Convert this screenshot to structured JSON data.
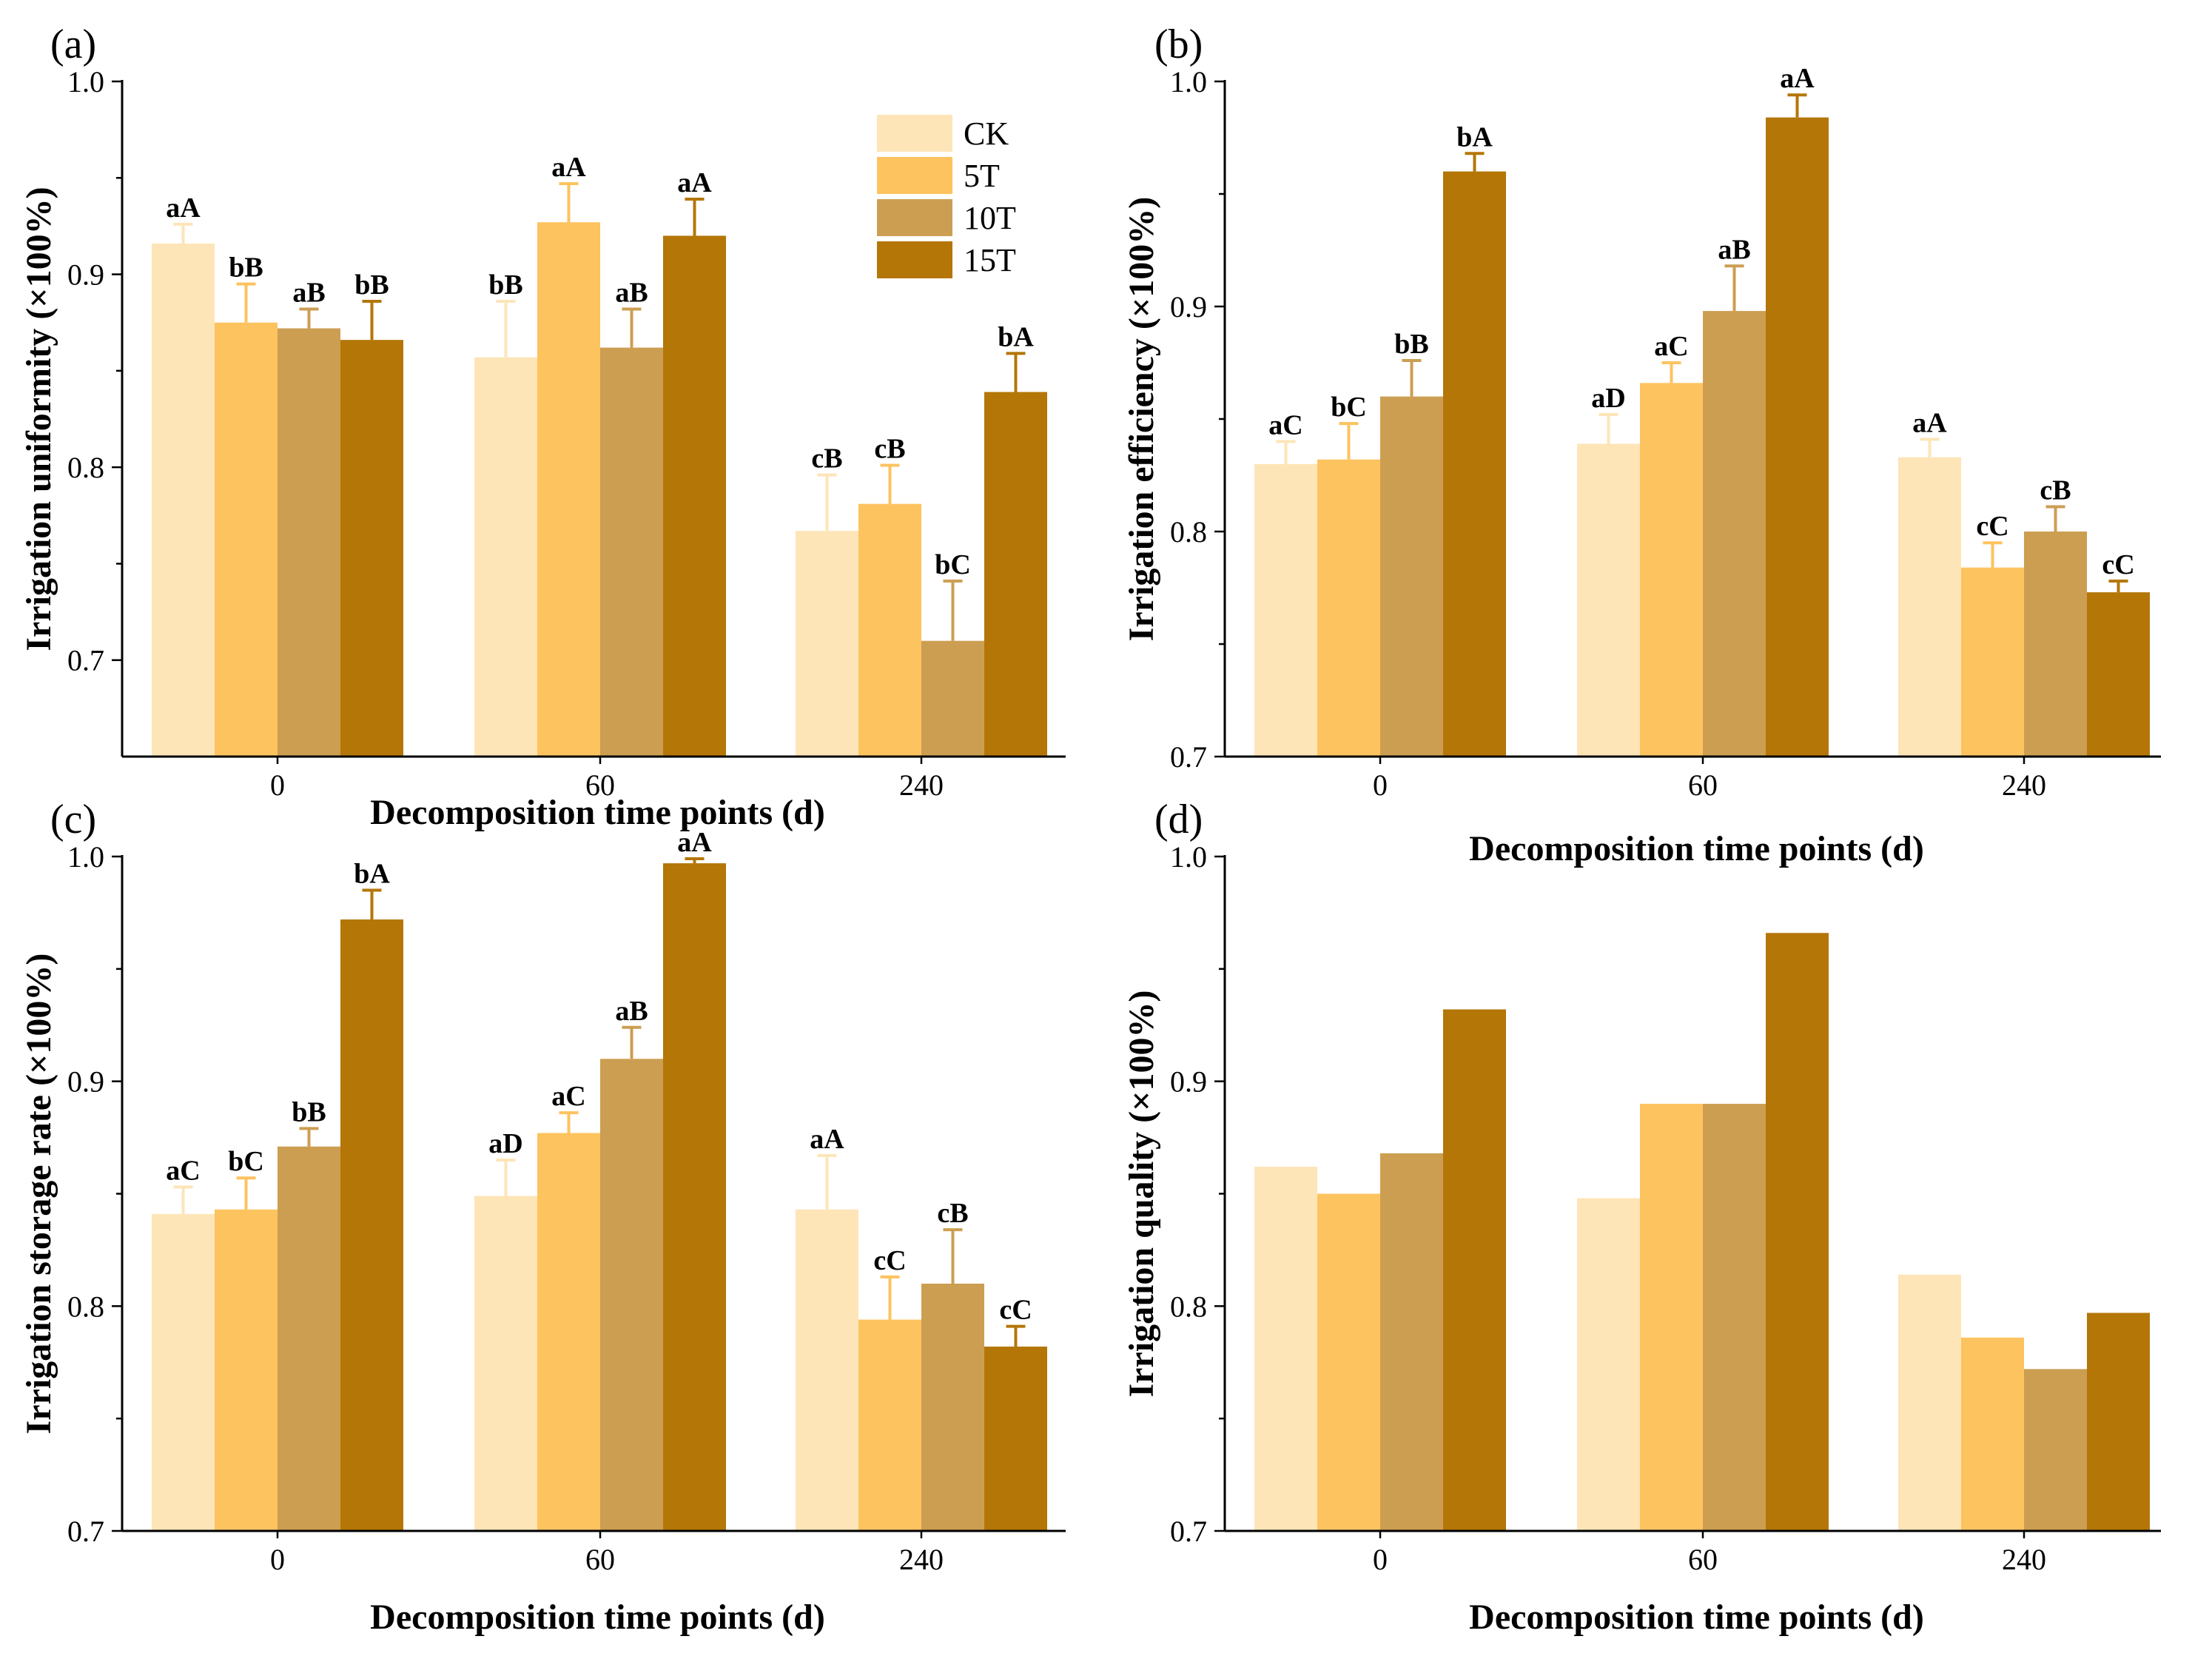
{
  "colors": {
    "CK": "#FDE5B8",
    "5T": "#FDC35F",
    "10T": "#CC9E52",
    "15T": "#B47607",
    "axis": "#000000"
  },
  "legend": {
    "entries": [
      "CK",
      "5T",
      "10T",
      "15T"
    ]
  },
  "chart_data": [
    {
      "type": "bar",
      "panel": "(a)",
      "title": "",
      "xlabel": "Decomposition time points (d)",
      "ylabel": "Irrigation uniformity (×100%)",
      "categories": [
        "0",
        "60",
        "240"
      ],
      "ylim": [
        0.65,
        1.0
      ],
      "yticks": [
        "0.7",
        "0.8",
        "0.9",
        "1.0"
      ],
      "series": [
        {
          "name": "CK",
          "values": [
            0.916,
            0.857,
            0.767
          ],
          "errors": [
            0.01,
            0.029,
            0.029
          ],
          "labels": [
            "aA",
            "bB",
            "cB"
          ]
        },
        {
          "name": "5T",
          "values": [
            0.875,
            0.927,
            0.781
          ],
          "errors": [
            0.02,
            0.02,
            0.02
          ],
          "labels": [
            "bB",
            "aA",
            "cB"
          ]
        },
        {
          "name": "10T",
          "values": [
            0.872,
            0.862,
            0.71
          ],
          "errors": [
            0.01,
            0.02,
            0.031
          ],
          "labels": [
            "aB",
            "aB",
            "bC"
          ]
        },
        {
          "name": "15T",
          "values": [
            0.866,
            0.92,
            0.839
          ],
          "errors": [
            0.02,
            0.019,
            0.02
          ],
          "labels": [
            "bB",
            "aA",
            "bA"
          ]
        }
      ]
    },
    {
      "type": "bar",
      "panel": "(b)",
      "title": "",
      "xlabel": "Decomposition time points (d)",
      "ylabel": "Irrigation efficiency (×100%)",
      "categories": [
        "0",
        "60",
        "240"
      ],
      "ylim": [
        0.7,
        1.0
      ],
      "yticks": [
        "0.7",
        "0.8",
        "0.9",
        "1.0"
      ],
      "series": [
        {
          "name": "CK",
          "values": [
            0.83,
            0.839,
            0.833
          ],
          "errors": [
            0.01,
            0.013,
            0.008
          ],
          "labels": [
            "aC",
            "aD",
            "aA"
          ]
        },
        {
          "name": "5T",
          "values": [
            0.832,
            0.866,
            0.784
          ],
          "errors": [
            0.016,
            0.009,
            0.011
          ],
          "labels": [
            "bC",
            "aC",
            "cC"
          ]
        },
        {
          "name": "10T",
          "values": [
            0.86,
            0.898,
            0.8
          ],
          "errors": [
            0.016,
            0.02,
            0.011
          ],
          "labels": [
            "bB",
            "aB",
            "cB"
          ]
        },
        {
          "name": "15T",
          "values": [
            0.96,
            0.984,
            0.773
          ],
          "errors": [
            0.008,
            0.01,
            0.005
          ],
          "labels": [
            "bA",
            "aA",
            "cC"
          ]
        }
      ]
    },
    {
      "type": "bar",
      "panel": "(c)",
      "title": "",
      "xlabel": "Decomposition time points (d)",
      "ylabel": "Irrigation storage rate (×100%)",
      "categories": [
        "0",
        "60",
        "240"
      ],
      "ylim": [
        0.7,
        1.0
      ],
      "yticks": [
        "0.7",
        "0.8",
        "0.9",
        "1.0"
      ],
      "series": [
        {
          "name": "CK",
          "values": [
            0.841,
            0.849,
            0.843
          ],
          "errors": [
            0.012,
            0.016,
            0.024
          ],
          "labels": [
            "aC",
            "aD",
            "aA"
          ]
        },
        {
          "name": "5T",
          "values": [
            0.843,
            0.877,
            0.794
          ],
          "errors": [
            0.014,
            0.009,
            0.019
          ],
          "labels": [
            "bC",
            "aC",
            "cC"
          ]
        },
        {
          "name": "10T",
          "values": [
            0.871,
            0.91,
            0.81
          ],
          "errors": [
            0.008,
            0.014,
            0.024
          ],
          "labels": [
            "bB",
            "aB",
            "cB"
          ]
        },
        {
          "name": "15T",
          "values": [
            0.972,
            0.997,
            0.782
          ],
          "errors": [
            0.013,
            0.002,
            0.009
          ],
          "labels": [
            "bA",
            "aA",
            "cC"
          ]
        }
      ]
    },
    {
      "type": "bar",
      "panel": "(d)",
      "title": "",
      "xlabel": "Decomposition time points (d)",
      "ylabel": "Irrigation quality (×100%)",
      "categories": [
        "0",
        "60",
        "240"
      ],
      "ylim": [
        0.7,
        1.0
      ],
      "yticks": [
        "0.7",
        "0.8",
        "0.9",
        "1.0"
      ],
      "series": [
        {
          "name": "CK",
          "values": [
            0.862,
            0.848,
            0.814
          ],
          "errors": [],
          "labels": []
        },
        {
          "name": "5T",
          "values": [
            0.85,
            0.89,
            0.786
          ],
          "errors": [],
          "labels": []
        },
        {
          "name": "10T",
          "values": [
            0.868,
            0.89,
            0.772
          ],
          "errors": [],
          "labels": []
        },
        {
          "name": "15T",
          "values": [
            0.932,
            0.966,
            0.797
          ],
          "errors": [],
          "labels": []
        }
      ]
    }
  ]
}
